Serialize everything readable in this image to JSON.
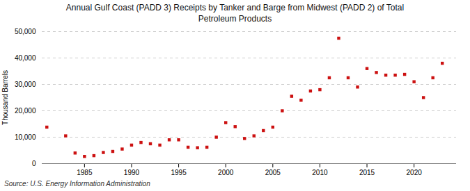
{
  "chart_data": {
    "type": "scatter",
    "title": "Annual Gulf Coast (PADD 3) Receipts by Tanker and Barge from Midwest (PADD 2) of Total\nPetroleum Products",
    "ylabel": "Thousand Barrels",
    "annotations": [
      "Source: U.S. Energy Information Administration"
    ],
    "x": [
      1981,
      1983,
      1984,
      1985,
      1986,
      1987,
      1988,
      1989,
      1990,
      1991,
      1992,
      1993,
      1994,
      1995,
      1996,
      1997,
      1998,
      1999,
      2000,
      2001,
      2002,
      2003,
      2004,
      2005,
      2006,
      2007,
      2008,
      2009,
      2010,
      2011,
      2012,
      2013,
      2014,
      2015,
      2016,
      2017,
      2018,
      2019,
      2020,
      2021,
      2022,
      2023
    ],
    "values": [
      13800,
      10500,
      4000,
      2700,
      3000,
      4200,
      4600,
      5500,
      7000,
      8000,
      7500,
      7000,
      9000,
      9000,
      6200,
      6000,
      6200,
      10000,
      15500,
      14000,
      9500,
      10500,
      12500,
      13800,
      20000,
      25500,
      24000,
      27500,
      28000,
      32500,
      47500,
      32500,
      29000,
      36000,
      34500,
      33500,
      33500,
      33800,
      31000,
      25000,
      32500,
      38000
    ],
    "color": "#cc1111",
    "marker": "square",
    "xlim": [
      1980.5,
      2024.5
    ],
    "xticks": [
      1985,
      1990,
      1995,
      2000,
      2005,
      2010,
      2015,
      2020
    ],
    "ylim": [
      0,
      50000
    ],
    "yticks": [
      0,
      {
        "value": 10000,
        "label": "10,000"
      },
      {
        "value": 20000,
        "label": "20,000"
      },
      {
        "value": 30000,
        "label": "30,000"
      },
      {
        "value": 40000,
        "label": "40,000"
      },
      {
        "value": 50000,
        "label": "50,000"
      }
    ],
    "grid": true
  }
}
